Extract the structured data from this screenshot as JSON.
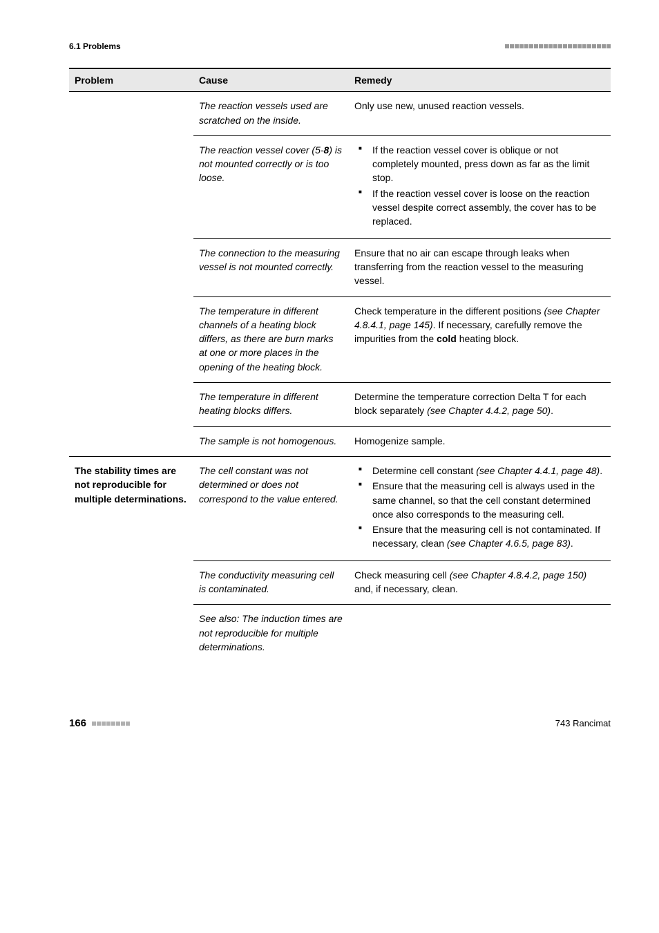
{
  "header": {
    "section_label": "6.1 Problems"
  },
  "table": {
    "headers": {
      "problem": "Problem",
      "cause": "Cause",
      "remedy": "Remedy"
    },
    "group1": {
      "problem": "",
      "rows": [
        {
          "cause": "The reaction vessels used are scratched on the inside.",
          "remedy_text": "Only use new, unused reaction vessels."
        },
        {
          "cause_pre": "The reaction vessel cover (5-",
          "cause_bold": "8",
          "cause_post": ") is not mounted correctly or is too loose.",
          "remedy_list": [
            "If the reaction vessel cover is oblique or not completely mounted, press down as far as the limit stop.",
            "If the reaction vessel cover is loose on the reaction vessel despite correct assembly, the cover has to be replaced."
          ]
        },
        {
          "cause": "The connection to the measuring vessel is not mounted correctly.",
          "remedy_text": "Ensure that no air can escape through leaks when transferring from the reaction vessel to the measuring vessel."
        },
        {
          "cause": "The temperature in different channels of a heating block differs, as there are burn marks at one or more places in the opening of the heating block.",
          "remedy_pre": "Check temperature in the different positions ",
          "remedy_italic": "(see Chapter 4.8.4.1, page 145)",
          "remedy_mid": ". If necessary, carefully remove the impurities from the ",
          "remedy_bold": "cold",
          "remedy_post": " heating block."
        },
        {
          "cause": "The temperature in different heating blocks differs.",
          "remedy_pre": "Determine the temperature correction Delta T for each block separately ",
          "remedy_italic": "(see Chapter 4.4.2, page 50)",
          "remedy_post": "."
        },
        {
          "cause": "The sample is not homogenous.",
          "remedy_text": "Homogenize sample."
        }
      ]
    },
    "group2": {
      "problem": "The stability times are not reproducible for multiple determinations.",
      "rows": [
        {
          "cause": "The cell constant was not determined or does not correspond to the value entered.",
          "remedy_list_rich": [
            {
              "pre": "Determine cell constant ",
              "italic": "(see Chapter 4.4.1, page 48)",
              "post": "."
            },
            {
              "pre": "Ensure that the measuring cell is always used in the same channel, so that the cell constant determined once also corresponds to the measuring cell.",
              "italic": "",
              "post": ""
            },
            {
              "pre": "Ensure that the measuring cell is not contaminated. If necessary, clean ",
              "italic": "(see Chapter 4.6.5, page 83)",
              "post": "."
            }
          ]
        },
        {
          "cause": "The conductivity measuring cell is contaminated.",
          "remedy_pre": "Check measuring cell ",
          "remedy_italic": "(see Chapter 4.8.4.2, page 150)",
          "remedy_post": " and, if necessary, clean."
        },
        {
          "cause": "See also: The induction times are not reproducible for multiple determinations.",
          "remedy_text": ""
        }
      ]
    }
  },
  "footer": {
    "page_number": "166",
    "document_title": "743 Rancimat"
  },
  "style": {
    "header_dash_count": 22,
    "footer_dash_count": 8
  }
}
